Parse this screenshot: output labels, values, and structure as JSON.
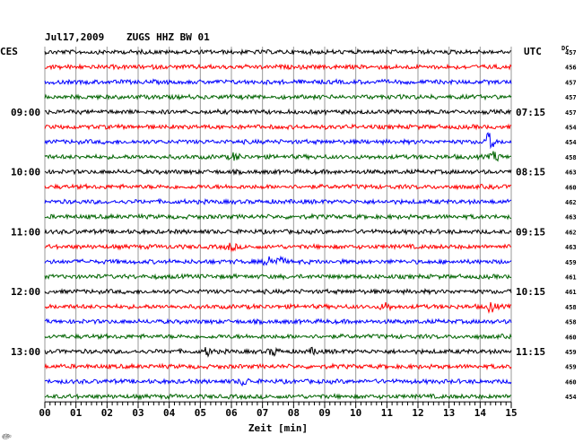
{
  "header": {
    "date": "Jul17,2009",
    "station": "ZUGS HHZ BW 01"
  },
  "left_zone": "CES",
  "right_zone": "UTC",
  "dc_label": "DC",
  "footnote": "௵",
  "chart_data": {
    "type": "line",
    "title": "Jul17,2009   ZUGS HHZ BW 01",
    "xlabel": "Zeit [min]",
    "x_range": [
      0,
      15
    ],
    "x_ticks": [
      "00",
      "01",
      "02",
      "03",
      "04",
      "05",
      "06",
      "07",
      "08",
      "09",
      "10",
      "11",
      "12",
      "13",
      "14",
      "15"
    ],
    "trace_colors": [
      "#000000",
      "#ff0000",
      "#0000ff",
      "#006400"
    ],
    "left_hour_labels": [
      {
        "row": 4,
        "text": "09:00"
      },
      {
        "row": 8,
        "text": "10:00"
      },
      {
        "row": 12,
        "text": "11:00"
      },
      {
        "row": 16,
        "text": "12:00"
      },
      {
        "row": 20,
        "text": "13:00"
      }
    ],
    "right_hour_labels": [
      {
        "row": 4,
        "text": "07:15"
      },
      {
        "row": 8,
        "text": "08:15"
      },
      {
        "row": 12,
        "text": "09:15"
      },
      {
        "row": 16,
        "text": "10:15"
      },
      {
        "row": 20,
        "text": "11:15"
      }
    ],
    "dc_values": [
      "457",
      "456",
      "457",
      "457",
      "457",
      "454",
      "454",
      "458",
      "463",
      "460",
      "462",
      "463",
      "462",
      "463",
      "459",
      "461",
      "461",
      "458",
      "458",
      "460",
      "459",
      "459",
      "460",
      "454"
    ],
    "grid": true
  }
}
